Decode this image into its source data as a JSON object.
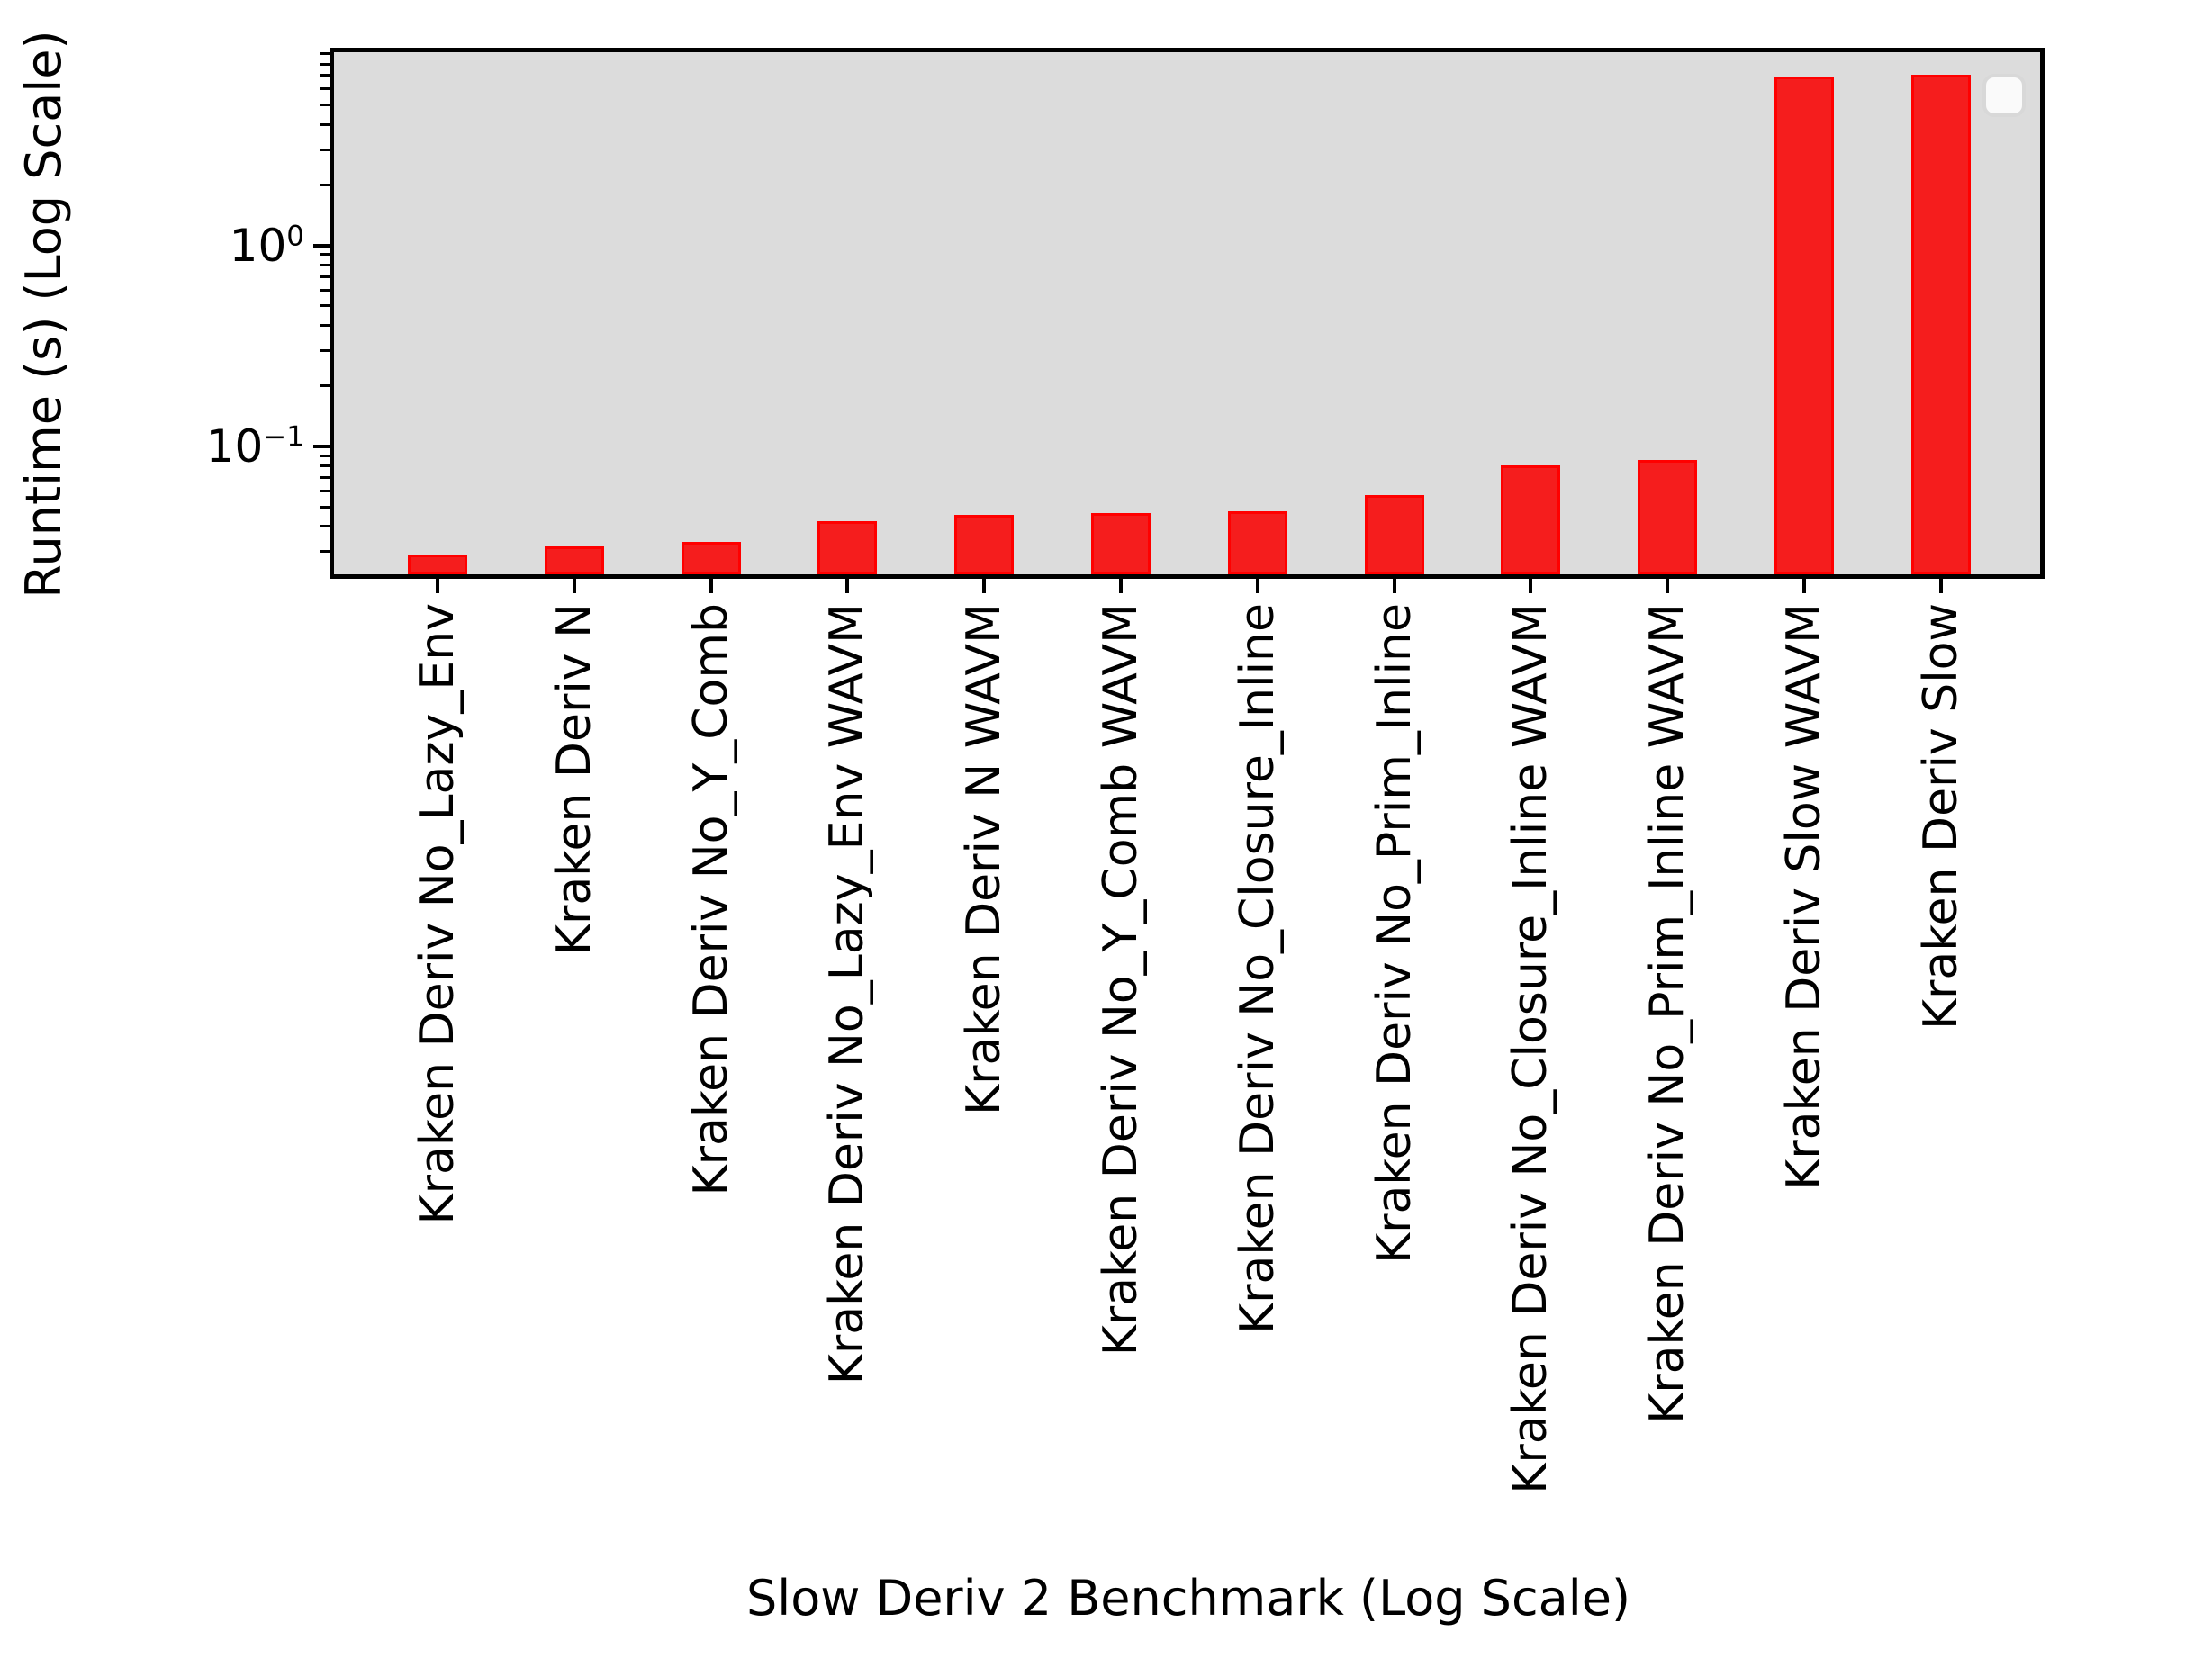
{
  "chart_data": {
    "type": "bar",
    "title": "",
    "xlabel": "Slow Deriv 2 Benchmark (Log Scale)",
    "ylabel": "Runtime (s) (Log Scale)",
    "yscale": "log",
    "ylim": [
      0.0218,
      9.44
    ],
    "grid": false,
    "legend_position": "upper right",
    "legend_entries": [],
    "categories": [
      "Kraken Deriv No_Lazy_Env",
      "Kraken Deriv N",
      "Kraken Deriv No_Y_Comb",
      "Kraken Deriv No_Lazy_Env WAVM",
      "Kraken Deriv N WAVM",
      "Kraken Deriv No_Y_Comb WAVM",
      "Kraken Deriv No_Closure_Inline",
      "Kraken Deriv No_Prim_Inline",
      "Kraken Deriv No_Closure_Inline WAVM",
      "Kraken Deriv No_Prim_Inline WAVM",
      "Kraken Deriv Slow WAVM",
      "Kraken Deriv Slow"
    ],
    "values": [
      0.029,
      0.032,
      0.0335,
      0.0425,
      0.0457,
      0.0466,
      0.0476,
      0.0573,
      0.0805,
      0.0855,
      6.9,
      7.1
    ],
    "yticks": [
      {
        "value": 1,
        "base": "10",
        "exponent": "0"
      },
      {
        "value": 0.1,
        "base": "10",
        "exponent": "−1"
      }
    ],
    "colors": {
      "bar_fill": "#f51d1d",
      "bar_edge": "#ff0000",
      "plot_background": "#dcdcdc",
      "figure_background": "#ffffff",
      "axis": "#000000"
    }
  }
}
